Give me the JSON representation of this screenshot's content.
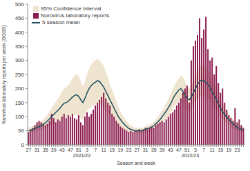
{
  "chart_data": {
    "type": "bar",
    "x_label": "Season and week",
    "y_label": "Norovirus laboratory reports per week (SGSS)",
    "annotations": [
      "2021/22",
      "2022/23"
    ],
    "legend": "top-left",
    "grid": false,
    "ylim": [
      0,
      500
    ],
    "yticks": [
      0,
      50,
      100,
      150,
      200,
      250,
      300,
      350,
      400,
      450,
      500
    ],
    "categories": [
      "27",
      null,
      null,
      null,
      "31",
      null,
      null,
      null,
      "35",
      null,
      null,
      null,
      "39",
      null,
      null,
      null,
      "43",
      null,
      null,
      null,
      "47",
      null,
      null,
      null,
      "51",
      null,
      null,
      null,
      "3",
      null,
      null,
      null,
      "7",
      null,
      null,
      null,
      "11",
      null,
      null,
      null,
      "15",
      null,
      null,
      null,
      "19",
      null,
      null,
      null,
      "23",
      null,
      null,
      null,
      "27",
      null,
      null,
      null,
      "31",
      null,
      null,
      null,
      "35",
      null,
      null,
      null,
      "39",
      null,
      null,
      null,
      "43",
      null,
      null,
      null,
      "47",
      null,
      null,
      null,
      "51",
      null,
      null,
      null,
      "3",
      null,
      null,
      null,
      "7",
      null,
      null,
      null,
      "11",
      null,
      null,
      null,
      "15",
      null,
      null,
      null,
      "19",
      null,
      null,
      null,
      "23",
      null,
      null,
      null
    ],
    "series": [
      {
        "name": "95% Confidence Interval",
        "type": "area",
        "color": "#efe4cf",
        "low": [
          40,
          42,
          44,
          46,
          49,
          50,
          52,
          54,
          58,
          62,
          66,
          70,
          74,
          78,
          82,
          85,
          90,
          96,
          95,
          98,
          102,
          105,
          105,
          106,
          100,
          95,
          90,
          105,
          120,
          130,
          135,
          140,
          144,
          150,
          150,
          140,
          130,
          120,
          110,
          105,
          95,
          85,
          75,
          65,
          60,
          55,
          50,
          45,
          42,
          40,
          40,
          40,
          40,
          40,
          40,
          42,
          44,
          46,
          48,
          50,
          54,
          60,
          64,
          70,
          78,
          85,
          92,
          102,
          112,
          125,
          138,
          145,
          155,
          155,
          140,
          125,
          120,
          120,
          130,
          145,
          155,
          165,
          170,
          175,
          174,
          170,
          165,
          160,
          145,
          135,
          125,
          112,
          100,
          91,
          84,
          76,
          70,
          64,
          58,
          52,
          48,
          46,
          44,
          42
        ],
        "high": [
          60,
          62,
          66,
          70,
          75,
          80,
          84,
          90,
          98,
          108,
          118,
          130,
          142,
          152,
          162,
          175,
          190,
          200,
          205,
          212,
          222,
          235,
          245,
          250,
          245,
          225,
          210,
          225,
          250,
          270,
          285,
          295,
          300,
          305,
          300,
          290,
          280,
          260,
          240,
          215,
          195,
          175,
          155,
          135,
          120,
          105,
          95,
          85,
          75,
          70,
          65,
          60,
          60,
          60,
          60,
          62,
          66,
          70,
          72,
          76,
          82,
          90,
          100,
          110,
          122,
          135,
          148,
          162,
          178,
          195,
          212,
          225,
          235,
          245,
          240,
          225,
          210,
          200,
          210,
          225,
          245,
          265,
          280,
          285,
          282,
          275,
          265,
          250,
          235,
          215,
          195,
          178,
          160,
          145,
          132,
          120,
          110,
          100,
          92,
          84,
          76,
          70,
          66,
          62
        ]
      },
      {
        "name": "Norovirus laboratory reports",
        "type": "bar",
        "color": "#8c1d4f",
        "values": [
          45,
          55,
          60,
          70,
          80,
          85,
          80,
          75,
          70,
          75,
          85,
          110,
          95,
          80,
          90,
          85,
          100,
          110,
          95,
          105,
          100,
          110,
          95,
          90,
          105,
          80,
          70,
          100,
          115,
          100,
          110,
          125,
          140,
          150,
          160,
          170,
          185,
          165,
          150,
          140,
          110,
          100,
          85,
          75,
          65,
          60,
          55,
          50,
          45,
          50,
          45,
          50,
          50,
          55,
          50,
          55,
          60,
          55,
          60,
          65,
          60,
          70,
          75,
          80,
          85,
          80,
          90,
          100,
          110,
          115,
          125,
          140,
          150,
          165,
          185,
          200,
          210,
          150,
          300,
          350,
          370,
          390,
          450,
          380,
          410,
          455,
          340,
          300,
          310,
          250,
          280,
          220,
          185,
          200,
          150,
          125,
          105,
          95,
          85,
          130,
          80,
          90,
          70,
          60
        ]
      },
      {
        "name": "5 season mean",
        "type": "line",
        "color": "#1d4e5c",
        "values": [
          50,
          52,
          55,
          58,
          62,
          65,
          68,
          72,
          78,
          85,
          92,
          100,
          108,
          115,
          122,
          130,
          140,
          148,
          150,
          155,
          162,
          170,
          175,
          178,
          172,
          160,
          150,
          165,
          185,
          200,
          210,
          218,
          222,
          228,
          225,
          215,
          205,
          190,
          175,
          160,
          145,
          130,
          115,
          100,
          90,
          80,
          72,
          65,
          58,
          55,
          52,
          50,
          50,
          50,
          50,
          52,
          55,
          58,
          60,
          63,
          68,
          75,
          82,
          90,
          100,
          110,
          120,
          132,
          145,
          160,
          175,
          185,
          195,
          200,
          190,
          175,
          165,
          160,
          170,
          185,
          200,
          215,
          225,
          230,
          228,
          222,
          215,
          205,
          190,
          175,
          160,
          145,
          130,
          118,
          108,
          98,
          90,
          82,
          75,
          68,
          62,
          58,
          55,
          52
        ]
      }
    ]
  }
}
